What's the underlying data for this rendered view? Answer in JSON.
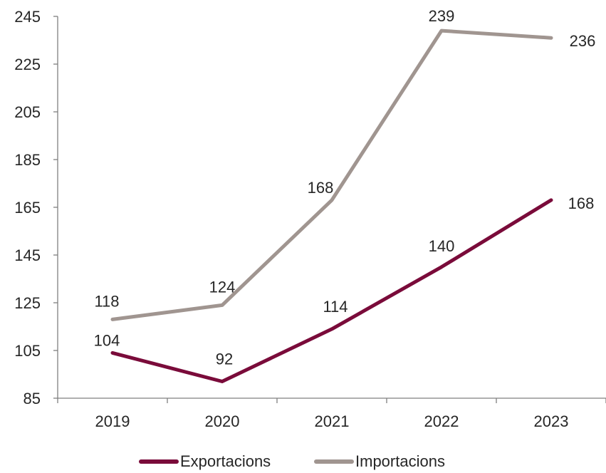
{
  "chart_data": {
    "type": "line",
    "categories": [
      "2019",
      "2020",
      "2021",
      "2022",
      "2023"
    ],
    "series": [
      {
        "name": "Exportacions",
        "color": "#7a0b3a",
        "values": [
          104,
          92,
          114,
          140,
          168
        ]
      },
      {
        "name": "Importacions",
        "color": "#a09590",
        "values": [
          118,
          124,
          168,
          239,
          236
        ]
      }
    ],
    "ylim": [
      85,
      245
    ],
    "yticks": [
      "85",
      "105",
      "125",
      "145",
      "165",
      "185",
      "205",
      "225",
      "245"
    ],
    "grid": false,
    "legend_position": "bottom"
  },
  "legend": {
    "items": [
      {
        "label": "Exportacions",
        "color": "#7a0b3a"
      },
      {
        "label": "Importacions",
        "color": "#a09590"
      }
    ]
  }
}
